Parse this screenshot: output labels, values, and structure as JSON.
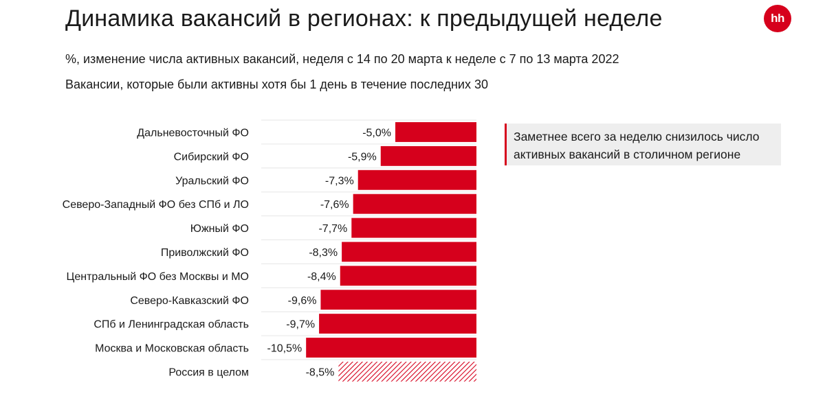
{
  "header": {
    "title": "Динамика вакансий в регионах: к предыдущей неделе",
    "subtitle": "%, изменение числа активных вакансий, неделя с 14 по 20 марта к неделе с 7 по 13 марта 2022",
    "subtitle2": "Вакансии, которые были активны хотя бы 1 день в течение последних 30",
    "logo_text": "hh",
    "logo_color": "#d6001c"
  },
  "callout": {
    "text": "Заметнее всего за неделю снизилось число активных вакансий в столичном регионе"
  },
  "chart_data": {
    "type": "bar",
    "orientation": "horizontal",
    "bar_color": "#d6001c",
    "categories": [
      "Дальневосточный ФО",
      "Сибирский ФО",
      "Уральский ФО",
      "Северо-Западный ФО без СПб и ЛО",
      "Южный ФО",
      "Приволжский ФО",
      "Центральный ФО без Москвы и МО",
      "Северо-Кавказский ФО",
      "СПб и Ленинградская область",
      "Москва и Московская область",
      "Россия в целом"
    ],
    "values": [
      -5.0,
      -5.9,
      -7.3,
      -7.6,
      -7.7,
      -8.3,
      -8.4,
      -9.6,
      -9.7,
      -10.5,
      -8.5
    ],
    "labels": [
      "-5,0%",
      "-5,9%",
      "-7,3%",
      "-7,6%",
      "-7,7%",
      "-8,3%",
      "-8,4%",
      "-9,6%",
      "-9,7%",
      "-10,5%",
      "-8,5%"
    ],
    "hatched": [
      false,
      false,
      false,
      false,
      false,
      false,
      false,
      false,
      false,
      false,
      true
    ]
  }
}
